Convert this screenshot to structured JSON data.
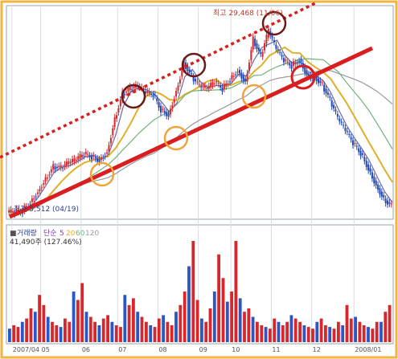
{
  "chart_data": [
    {
      "type": "candlestick",
      "panel": "price",
      "annotations": {
        "high_label": "최고 29,468 (11/06)",
        "low_label": "최저 5,512 (04/19)"
      },
      "x_ticks": [
        "2007/04",
        "05",
        "06",
        "07",
        "08",
        "09",
        "10",
        "11",
        "12",
        "2008/01"
      ],
      "x_tick_pos": [
        0.01,
        0.085,
        0.19,
        0.285,
        0.39,
        0.495,
        0.58,
        0.685,
        0.79,
        0.9
      ],
      "ylim": [
        5000,
        30500
      ],
      "series": [
        {
          "name": "price",
          "x": [
            0,
            0.02,
            0.04,
            0.06,
            0.08,
            0.1,
            0.12,
            0.14,
            0.16,
            0.18,
            0.2,
            0.22,
            0.24,
            0.26,
            0.28,
            0.3,
            0.32,
            0.34,
            0.36,
            0.38,
            0.4,
            0.42,
            0.44,
            0.46,
            0.48,
            0.5,
            0.52,
            0.54,
            0.56,
            0.58,
            0.6,
            0.62,
            0.64,
            0.66,
            0.68,
            0.7,
            0.72,
            0.74,
            0.76,
            0.78,
            0.8,
            0.82,
            0.84,
            0.86,
            0.88,
            0.9,
            0.92,
            0.94,
            0.96,
            0.98,
            1.0
          ],
          "values": [
            5700,
            5600,
            5800,
            6900,
            8200,
            9800,
            11200,
            11000,
            11600,
            12000,
            12700,
            12400,
            12000,
            13000,
            17000,
            20000,
            20600,
            20900,
            20100,
            19900,
            18100,
            17500,
            20400,
            23800,
            22100,
            20900,
            20600,
            21400,
            20600,
            21800,
            22900,
            21500,
            26700,
            24500,
            27600,
            25400,
            24000,
            23400,
            24200,
            22400,
            22100,
            21100,
            19200,
            17000,
            15500,
            14000,
            12800,
            11000,
            9000,
            7300,
            6400
          ]
        },
        {
          "name": "5",
          "color": "#6a6aa8"
        },
        {
          "name": "20",
          "color": "#e0b02a"
        },
        {
          "name": "60",
          "color": "#6fb37a"
        },
        {
          "name": "120",
          "color": "#9a9a9a"
        }
      ]
    },
    {
      "type": "bar",
      "panel": "volume",
      "legend": {
        "title": "거래량",
        "items": [
          {
            "name": "단순",
            "color": "#7a3db5"
          },
          {
            "name": "5",
            "color": "#7a3db5"
          },
          {
            "name": "20",
            "color": "#e0b02a"
          },
          {
            "name": "60",
            "color": "#6fb37a"
          },
          {
            "name": "120",
            "color": "#9a9a9a"
          }
        ]
      },
      "last_value_label": "41,490주 (127.46%)",
      "values": [
        8,
        10,
        9,
        12,
        14,
        20,
        18,
        28,
        22,
        15,
        12,
        10,
        9,
        14,
        12,
        30,
        25,
        35,
        18,
        15,
        12,
        10,
        14,
        16,
        12,
        10,
        9,
        28,
        22,
        26,
        18,
        15,
        12,
        10,
        9,
        14,
        16,
        12,
        10,
        18,
        22,
        30,
        45,
        60,
        25,
        14,
        12,
        20,
        30,
        52,
        38,
        24,
        30,
        60,
        26,
        18,
        20,
        15,
        12,
        10,
        9,
        8,
        14,
        12,
        10,
        12,
        16,
        14,
        12,
        10,
        9,
        8,
        12,
        14,
        10,
        9,
        8,
        12,
        10,
        22,
        14,
        15,
        12,
        10,
        9,
        8,
        12,
        12,
        18,
        22
      ]
    }
  ],
  "colors": {
    "frame": "#f2b640",
    "trend": "#d81e1e",
    "high_circle": "#6b1a1a",
    "low_circle": "#f2a33a"
  }
}
